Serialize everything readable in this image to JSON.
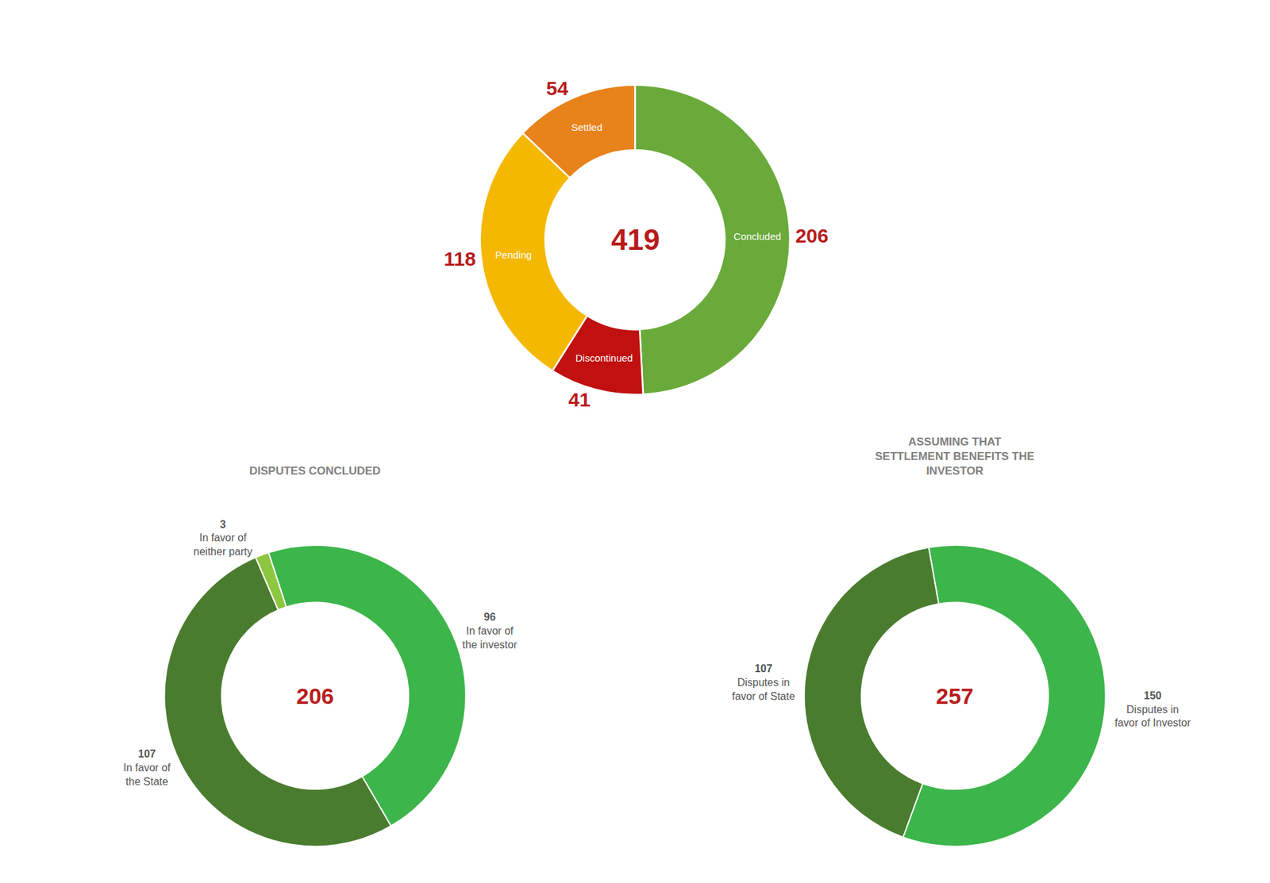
{
  "chart_data": [
    {
      "type": "pie",
      "categories": [
        "Concluded",
        "Discontinued",
        "Pending",
        "Settled"
      ],
      "values": [
        206,
        41,
        118,
        54
      ],
      "colors": [
        "#6aaa3a",
        "#c01010",
        "#f5b800",
        "#e8821a"
      ],
      "annotations": [
        "419"
      ],
      "data_labels": true
    },
    {
      "type": "pie",
      "title": "DISPUTES CONCLUDED",
      "categories": [
        "In favor of\nthe investor",
        "In favor of\nthe State",
        "In favor of\nneither party"
      ],
      "values": [
        96,
        107,
        3
      ],
      "colors": [
        "#3cb54a",
        "#4a7c2f",
        "#8dc63f"
      ],
      "annotations": [
        "206"
      ],
      "data_labels": true
    },
    {
      "type": "pie",
      "title": "ASSUMING THAT\nSETTLEMENT BENEFITS THE\nINVESTOR",
      "categories": [
        "Disputes in\nfavor of Investor",
        "Disputes in\nfavor of State"
      ],
      "values": [
        150,
        107
      ],
      "colors": [
        "#3cb54a",
        "#4a7c2f"
      ],
      "annotations": [
        "257"
      ],
      "data_labels": true
    }
  ]
}
